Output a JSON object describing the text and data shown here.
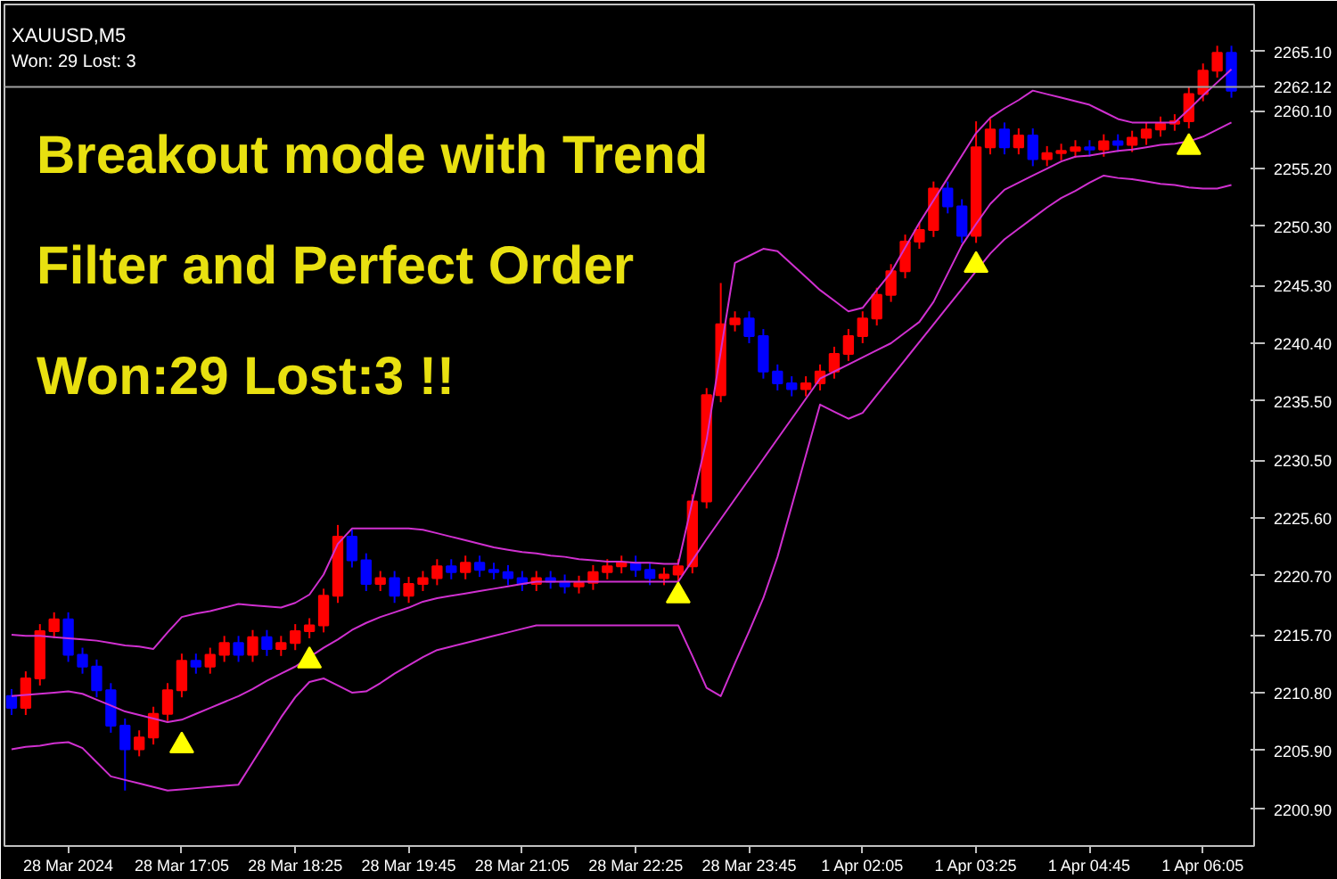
{
  "chart_data": {
    "type": "candlestick",
    "title": "XAUUSD,M5",
    "subtitle": "Won: 29  Lost: 3",
    "annotations": [
      "Breakout mode with Trend",
      "Filter and Perfect Order",
      "Won:29 Lost:3 !!"
    ],
    "categories": [
      null,
      null,
      null,
      null,
      "28 Mar 2024",
      null,
      null,
      null,
      null,
      null,
      null,
      null,
      "28 Mar 17:05",
      null,
      null,
      null,
      null,
      null,
      null,
      null,
      "28 Mar 18:25",
      null,
      null,
      null,
      null,
      null,
      null,
      null,
      "28 Mar 19:45",
      null,
      null,
      null,
      null,
      null,
      null,
      null,
      "28 Mar 21:05",
      null,
      null,
      null,
      null,
      null,
      null,
      null,
      "28 Mar 22:25",
      null,
      null,
      null,
      null,
      null,
      null,
      null,
      "28 Mar 23:45",
      null,
      null,
      null,
      null,
      null,
      null,
      null,
      "1 Apr 02:05",
      null,
      null,
      null,
      null,
      null,
      null,
      null,
      "1 Apr 03:25",
      null,
      null,
      null,
      null,
      null,
      null,
      null,
      "1 Apr 04:45",
      null,
      null,
      null,
      null,
      null,
      null,
      null,
      "1 Apr 06:05",
      null,
      null
    ],
    "ohlc": [
      [
        2210.5,
        2211.1,
        2208.9,
        2209.5
      ],
      [
        2209.5,
        2212.6,
        2208.9,
        2212
      ],
      [
        2212,
        2216.6,
        2211.4,
        2216
      ],
      [
        2216,
        2217.6,
        2215.4,
        2217
      ],
      [
        2217,
        2217.6,
        2213.4,
        2214
      ],
      [
        2214,
        2214.6,
        2212.4,
        2213
      ],
      [
        2213,
        2213.6,
        2210.4,
        2211
      ],
      [
        2211,
        2211.6,
        2207.4,
        2208
      ],
      [
        2208,
        2208.6,
        2202.5,
        2206
      ],
      [
        2206,
        2207.6,
        2205.4,
        2207
      ],
      [
        2207,
        2209.6,
        2206.4,
        2209
      ],
      [
        2209,
        2211.6,
        2208.4,
        2211
      ],
      [
        2211,
        2214.1,
        2210.4,
        2213.5
      ],
      [
        2213.5,
        2214.1,
        2212.4,
        2213
      ],
      [
        2213,
        2214.6,
        2212.4,
        2214
      ],
      [
        2214,
        2215.6,
        2213.4,
        2215
      ],
      [
        2215,
        2215.6,
        2213.4,
        2214
      ],
      [
        2214,
        2216.1,
        2213.4,
        2215.5
      ],
      [
        2215.5,
        2216.1,
        2213.9,
        2214.5
      ],
      [
        2214.5,
        2215.6,
        2213.9,
        2215
      ],
      [
        2215,
        2216.6,
        2214.4,
        2216
      ],
      [
        2216,
        2217.1,
        2215.4,
        2216.5
      ],
      [
        2216.5,
        2219.6,
        2215.9,
        2219
      ],
      [
        2219,
        2225,
        2218.4,
        2224
      ],
      [
        2224,
        2224.6,
        2221.4,
        2222
      ],
      [
        2222,
        2222.6,
        2219.4,
        2220
      ],
      [
        2220,
        2221.1,
        2219.4,
        2220.5
      ],
      [
        2220.5,
        2221.1,
        2218.4,
        2219
      ],
      [
        2219,
        2220.6,
        2218.4,
        2220
      ],
      [
        2220,
        2221.1,
        2219.4,
        2220.5
      ],
      [
        2220.5,
        2222.1,
        2219.9,
        2221.5
      ],
      [
        2221.5,
        2222.1,
        2220.4,
        2221
      ],
      [
        2221,
        2222.4,
        2220.4,
        2221.8
      ],
      [
        2221.8,
        2222.4,
        2220.6,
        2221.2
      ],
      [
        2221.2,
        2221.8,
        2220.4,
        2221
      ],
      [
        2221,
        2221.6,
        2219.9,
        2220.5
      ],
      [
        2220.5,
        2221.1,
        2219.4,
        2220
      ],
      [
        2220,
        2221.1,
        2219.4,
        2220.5
      ],
      [
        2220.5,
        2221.1,
        2219.6,
        2220.2
      ],
      [
        2220.2,
        2220.8,
        2219.2,
        2219.8
      ],
      [
        2219.8,
        2220.7,
        2219.2,
        2220.1
      ],
      [
        2220.1,
        2221.6,
        2219.5,
        2221
      ],
      [
        2221,
        2222.1,
        2220.4,
        2221.5
      ],
      [
        2221.5,
        2222.4,
        2220.9,
        2221.8
      ],
      [
        2221.8,
        2222.4,
        2220.6,
        2221.2
      ],
      [
        2221.2,
        2221.8,
        2219.9,
        2220.5
      ],
      [
        2220.5,
        2221.4,
        2219.9,
        2220.8
      ],
      [
        2220.8,
        2222.1,
        2220.2,
        2221.5
      ],
      [
        2221.5,
        2227.6,
        2220.9,
        2227
      ],
      [
        2227,
        2236.6,
        2226.4,
        2236
      ],
      [
        2236,
        2245.5,
        2235.4,
        2242
      ],
      [
        2242,
        2243.1,
        2241.4,
        2242.5
      ],
      [
        2242.5,
        2243.1,
        2240.4,
        2241
      ],
      [
        2241,
        2241.6,
        2237.4,
        2238
      ],
      [
        2238,
        2238.6,
        2236.4,
        2237
      ],
      [
        2237,
        2237.6,
        2235.9,
        2236.5
      ],
      [
        2236.5,
        2237.6,
        2235.9,
        2237
      ],
      [
        2237,
        2238.6,
        2236.4,
        2238
      ],
      [
        2238,
        2240.1,
        2237.4,
        2239.5
      ],
      [
        2239.5,
        2241.6,
        2238.9,
        2241
      ],
      [
        2241,
        2243.1,
        2240.4,
        2242.5
      ],
      [
        2242.5,
        2245.1,
        2241.9,
        2244.5
      ],
      [
        2244.5,
        2247.1,
        2243.9,
        2246.5
      ],
      [
        2246.5,
        2249.6,
        2245.9,
        2249
      ],
      [
        2249,
        2250.6,
        2248.4,
        2250
      ],
      [
        2250,
        2254.1,
        2249.4,
        2253.5
      ],
      [
        2253.5,
        2254.1,
        2251.4,
        2252
      ],
      [
        2252,
        2252.6,
        2248.9,
        2249.5
      ],
      [
        2249.5,
        2259.2,
        2248.9,
        2257
      ],
      [
        2257,
        2259.4,
        2256.4,
        2258.5
      ],
      [
        2258.5,
        2259.1,
        2256.4,
        2257
      ],
      [
        2257,
        2258.6,
        2256.4,
        2258
      ],
      [
        2258,
        2258.6,
        2255.4,
        2256
      ],
      [
        2256,
        2257.1,
        2255.4,
        2256.5
      ],
      [
        2256.5,
        2257.3,
        2255.9,
        2256.7
      ],
      [
        2256.7,
        2257.6,
        2256.1,
        2257
      ],
      [
        2257,
        2257.6,
        2256.2,
        2256.8
      ],
      [
        2256.8,
        2258.1,
        2256.2,
        2257.5
      ],
      [
        2257.5,
        2258.1,
        2256.6,
        2257.2
      ],
      [
        2257.2,
        2258.4,
        2256.6,
        2257.8
      ],
      [
        2257.8,
        2259.1,
        2257.2,
        2258.5
      ],
      [
        2258.5,
        2259.6,
        2257.9,
        2259
      ],
      [
        2259,
        2259.8,
        2258.4,
        2259.2
      ],
      [
        2259.2,
        2262.1,
        2258.6,
        2261.5
      ],
      [
        2261.5,
        2264.1,
        2260.9,
        2263.5
      ],
      [
        2263.5,
        2265.6,
        2262.9,
        2265
      ],
      [
        2265,
        2265.6,
        2261.2,
        2261.8
      ]
    ],
    "colors": [
      "#0000ff",
      "#ff0000",
      "#ff0000",
      "#ff0000",
      "#0000ff",
      "#0000ff",
      "#0000ff",
      "#0000ff",
      "#0000ff",
      "#ff0000",
      "#ff0000",
      "#ff0000",
      "#ff0000",
      "#0000ff",
      "#ff0000",
      "#ff0000",
      "#0000ff",
      "#ff0000",
      "#0000ff",
      "#ff0000",
      "#ff0000",
      "#ff0000",
      "#ff0000",
      "#ff0000",
      "#0000ff",
      "#0000ff",
      "#ff0000",
      "#0000ff",
      "#ff0000",
      "#ff0000",
      "#ff0000",
      "#0000ff",
      "#ff0000",
      "#0000ff",
      "#0000ff",
      "#0000ff",
      "#0000ff",
      "#ff0000",
      "#0000ff",
      "#0000ff",
      "#ff0000",
      "#ff0000",
      "#ff0000",
      "#ff0000",
      "#0000ff",
      "#0000ff",
      "#ff0000",
      "#ff0000",
      "#ff0000",
      "#ff0000",
      "#ff0000",
      "#ff0000",
      "#0000ff",
      "#0000ff",
      "#0000ff",
      "#0000ff",
      "#ff0000",
      "#ff0000",
      "#ff0000",
      "#ff0000",
      "#ff0000",
      "#ff0000",
      "#ff0000",
      "#ff0000",
      "#ff0000",
      "#ff0000",
      "#0000ff",
      "#0000ff",
      "#ff0000",
      "#ff0000",
      "#0000ff",
      "#ff0000",
      "#0000ff",
      "#ff0000",
      "#ff0000",
      "#ff0000",
      "#0000ff",
      "#ff0000",
      "#0000ff",
      "#ff0000",
      "#ff0000",
      "#ff0000",
      "#ff0000",
      "#ff0000",
      "#ff0000",
      "#ff0000",
      "#0000ff"
    ],
    "series": [
      {
        "type": "line",
        "color": "#d030d0",
        "values": [
          2215.7,
          2215.6,
          2215.6,
          2215.5,
          2215.4,
          2215.3,
          2215.2,
          2215.0,
          2214.8,
          2214.7,
          2214.5,
          2215.9,
          2217.2,
          2217.5,
          2217.7,
          2218.0,
          2218.3,
          2218.2,
          2218.1,
          2218.0,
          2218.4,
          2219.1,
          2220.8,
          2223.4,
          2224.7,
          2224.7,
          2224.7,
          2224.7,
          2224.7,
          2224.6,
          2224.3,
          2224.0,
          2223.7,
          2223.4,
          2223.1,
          2222.9,
          2222.7,
          2222.6,
          2222.4,
          2222.3,
          2222.1,
          2222.0,
          2221.9,
          2221.9,
          2221.8,
          2221.8,
          2221.7,
          2221.7,
          2227.0,
          2232.2,
          2239.7,
          2247.2,
          2247.8,
          2248.4,
          2248.2,
          2247.1,
          2246.0,
          2244.9,
          2244.0,
          2243.1,
          2243.4,
          2244.9,
          2246.4,
          2248.5,
          2250.6,
          2252.5,
          2254.4,
          2256.3,
          2258.2,
          2259.5,
          2260.3,
          2261.0,
          2261.8,
          2261.5,
          2261.2,
          2260.9,
          2260.6,
          2260.0,
          2259.4,
          2259.1,
          2259.1,
          2259.1,
          2259.1,
          2260.2,
          2261.4,
          2262.5,
          2263.6
        ]
      },
      {
        "type": "line",
        "color": "#d030d0",
        "values": [
          2210.5,
          2210.6,
          2210.7,
          2210.8,
          2210.9,
          2210.7,
          2210.2,
          2209.7,
          2209.2,
          2208.9,
          2208.6,
          2208.3,
          2208.5,
          2209.0,
          2209.5,
          2210.0,
          2210.5,
          2211.1,
          2211.8,
          2212.4,
          2213.0,
          2213.8,
          2214.6,
          2215.3,
          2216.1,
          2216.7,
          2217.2,
          2217.6,
          2218.0,
          2218.5,
          2218.8,
          2219.0,
          2219.2,
          2219.4,
          2219.6,
          2219.8,
          2220.0,
          2220.2,
          2220.2,
          2220.2,
          2220.2,
          2220.2,
          2220.2,
          2220.2,
          2220.2,
          2220.2,
          2220.2,
          2220.2,
          2222.0,
          2223.8,
          2225.5,
          2227.2,
          2228.9,
          2230.6,
          2232.3,
          2234.0,
          2235.7,
          2237.4,
          2238.0,
          2238.6,
          2239.2,
          2239.8,
          2240.4,
          2241.3,
          2242.2,
          2243.9,
          2246.3,
          2248.7,
          2250.5,
          2252.2,
          2253.4,
          2254.0,
          2254.6,
          2255.2,
          2255.8,
          2256.2,
          2256.3,
          2256.5,
          2256.7,
          2256.8,
          2257.0,
          2257.2,
          2257.3,
          2257.5,
          2257.9,
          2258.5,
          2259.1
        ]
      },
      {
        "type": "line",
        "color": "#d030d0",
        "values": [
          2206.0,
          2206.2,
          2206.3,
          2206.5,
          2206.6,
          2206.1,
          2204.9,
          2203.7,
          2203.4,
          2203.1,
          2202.8,
          2202.5,
          2202.6,
          2202.7,
          2202.8,
          2202.9,
          2203.0,
          2204.9,
          2206.8,
          2208.7,
          2210.4,
          2211.7,
          2212.0,
          2211.4,
          2210.8,
          2210.9,
          2211.6,
          2212.4,
          2213.1,
          2213.8,
          2214.4,
          2214.7,
          2215.0,
          2215.3,
          2215.6,
          2215.9,
          2216.2,
          2216.5,
          2216.5,
          2216.5,
          2216.5,
          2216.5,
          2216.5,
          2216.5,
          2216.5,
          2216.5,
          2216.5,
          2216.5,
          2213.9,
          2211.2,
          2210.5,
          2213.3,
          2216.0,
          2218.8,
          2222.3,
          2226.6,
          2230.9,
          2235.2,
          2234.6,
          2234.0,
          2234.5,
          2236.0,
          2237.5,
          2239.0,
          2240.5,
          2242.0,
          2243.5,
          2245.0,
          2246.5,
          2248.0,
          2249.2,
          2250.1,
          2251.0,
          2251.9,
          2252.7,
          2253.3,
          2254.0,
          2254.6,
          2254.4,
          2254.3,
          2254.1,
          2253.9,
          2253.8,
          2253.6,
          2253.5,
          2253.5,
          2253.8
        ]
      },
      {
        "type": "scatter",
        "color": "#ffff00",
        "marker": "triangle",
        "values": [
          null,
          null,
          null,
          null,
          null,
          null,
          null,
          null,
          null,
          null,
          null,
          null,
          2206.3,
          null,
          null,
          null,
          null,
          null,
          null,
          null,
          null,
          2213.5,
          null,
          null,
          null,
          null,
          null,
          null,
          null,
          null,
          null,
          null,
          null,
          null,
          null,
          null,
          null,
          null,
          null,
          null,
          null,
          null,
          null,
          null,
          null,
          null,
          null,
          2219.0,
          null,
          null,
          null,
          null,
          null,
          null,
          null,
          null,
          null,
          null,
          null,
          null,
          null,
          null,
          null,
          null,
          null,
          null,
          null,
          null,
          2247.0,
          null,
          null,
          null,
          null,
          null,
          null,
          null,
          null,
          null,
          null,
          null,
          null,
          null,
          null,
          2257.0,
          null,
          null,
          null
        ]
      }
    ],
    "ref_lines": [
      {
        "axis": "y",
        "value": 2262.12,
        "label": "2262.12",
        "color": "#a0a0a0"
      }
    ],
    "ylim": [
      2197.8,
      2269.1
    ],
    "yticks": [
      {
        "value": 2200.9,
        "label": "2200.90"
      },
      {
        "value": 2205.9,
        "label": "2205.90"
      },
      {
        "value": 2210.8,
        "label": "2210.80"
      },
      {
        "value": 2215.7,
        "label": "2215.70"
      },
      {
        "value": 2220.7,
        "label": "2220.70"
      },
      {
        "value": 2225.6,
        "label": "2225.60"
      },
      {
        "value": 2230.5,
        "label": "2230.50"
      },
      {
        "value": 2235.5,
        "label": "2235.50"
      },
      {
        "value": 2240.4,
        "label": "2240.40"
      },
      {
        "value": 2245.3,
        "label": "2245.30"
      },
      {
        "value": 2250.3,
        "label": "2250.30"
      },
      {
        "value": 2255.2,
        "label": "2255.20"
      },
      {
        "value": 2260.1,
        "label": "2260.10"
      },
      {
        "value": 2265.1,
        "label": "2265.10"
      }
    ],
    "grid": false
  }
}
